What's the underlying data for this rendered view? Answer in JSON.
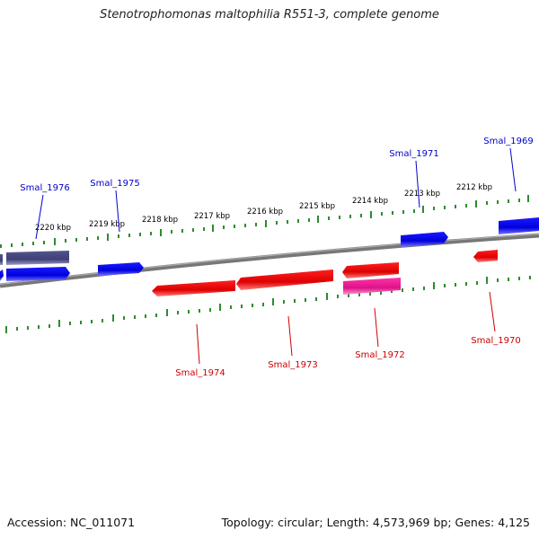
{
  "title": "Stenotrophomonas maltophilia R551-3, complete genome",
  "footer": {
    "accession": "Accession: NC_011071",
    "summary": "Topology: circular; Length: 4,573,969 bp; Genes: 4,125"
  },
  "colors": {
    "backbone": "#808080",
    "tick": "#2e8b2e",
    "forward_gene": "#0000ee",
    "reverse_gene": "#ee0000",
    "forward_label": "#0000cc",
    "reverse_label": "#cc0000",
    "forward_other": "#4a4a88",
    "reverse_other": "#ee1199"
  },
  "scale": {
    "ticks": [
      "2220 kbp",
      "2219 kbp",
      "2218 kbp",
      "2217 kbp",
      "2216 kbp",
      "2215 kbp",
      "2214 kbp",
      "2213 kbp",
      "2212 kbp"
    ]
  },
  "labels": {
    "forward": [
      "Smal_1976",
      "Smal_1975",
      "Smal_1971",
      "Smal_1969"
    ],
    "reverse": [
      "Smal_1974",
      "Smal_1973",
      "Smal_1972",
      "Smal_1970"
    ]
  }
}
